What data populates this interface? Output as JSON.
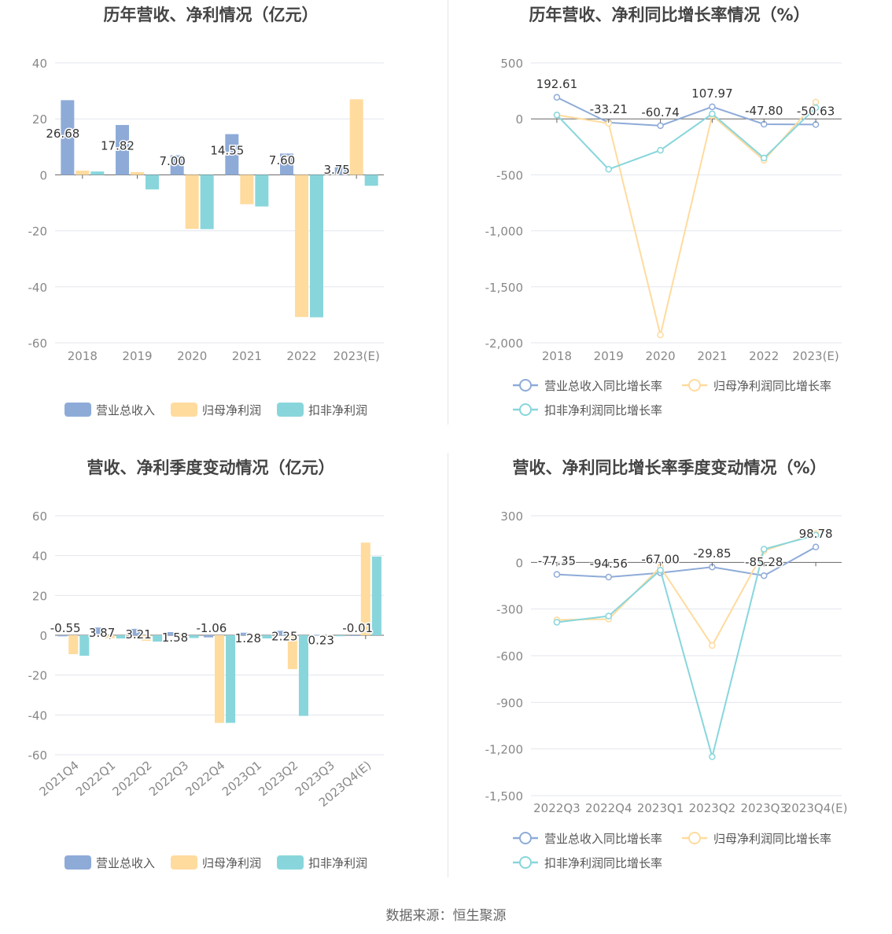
{
  "source_label": "数据来源：恒生聚源",
  "colors": {
    "revenue": "#8eabd8",
    "net_profit": "#ffdb9e",
    "deducted_profit": "#88d6dc"
  },
  "chart_data": [
    {
      "type": "bar",
      "title": "历年营收、净利情况（亿元）",
      "categories": [
        "2018",
        "2019",
        "2020",
        "2021",
        "2022",
        "2023(E)"
      ],
      "series": [
        {
          "name": "营业总收入",
          "values": [
            26.68,
            17.82,
            7.0,
            14.55,
            7.6,
            3.75
          ],
          "labels": [
            "26.68",
            "17.82",
            "7.00",
            "14.55",
            "7.60",
            "3.75"
          ]
        },
        {
          "name": "归母净利润",
          "values": [
            1.5,
            1.0,
            -19.3,
            -10.5,
            -50.8,
            27.0
          ]
        },
        {
          "name": "扣非净利润",
          "values": [
            1.2,
            -5.2,
            -19.4,
            -11.3,
            -50.9,
            -3.9
          ]
        }
      ],
      "ylim": [
        -60,
        40
      ],
      "yticks": [
        "40",
        "20",
        "0",
        "-20",
        "-40",
        "-60"
      ],
      "legend": "bottom"
    },
    {
      "type": "line",
      "title": "历年营收、净利同比增长率情况（%）",
      "categories": [
        "2018",
        "2019",
        "2020",
        "2021",
        "2022",
        "2023(E)"
      ],
      "series": [
        {
          "name": "营业总收入同比增长率",
          "values": [
            192.61,
            -33.21,
            -60.74,
            107.97,
            -47.8,
            -50.63
          ],
          "labels": [
            "192.61",
            "-33.21",
            "-60.74",
            "107.97",
            "-47.80",
            "-50.63"
          ]
        },
        {
          "name": "归母净利润同比增长率",
          "values": [
            35,
            -40,
            -1930,
            30,
            -370,
            150
          ]
        },
        {
          "name": "扣非净利润同比增长率",
          "values": [
            35,
            -450,
            -280,
            45,
            -350,
            100
          ]
        }
      ],
      "ylim": [
        -2000,
        500
      ],
      "yticks": [
        "500",
        "0",
        "-500",
        "-1,000",
        "-1,500",
        "-2,000"
      ],
      "legend": "bottom"
    },
    {
      "type": "bar",
      "title": "营收、净利季度变动情况（亿元）",
      "categories": [
        "2021Q4",
        "2022Q1",
        "2022Q2",
        "2022Q3",
        "2022Q4",
        "2023Q1",
        "2023Q2",
        "2023Q3",
        "2023Q4(E)"
      ],
      "series": [
        {
          "name": "营业总收入",
          "values": [
            -0.55,
            3.87,
            3.21,
            1.58,
            -1.06,
            1.28,
            2.25,
            0.23,
            -0.01
          ],
          "labels": [
            "-0.55",
            "3.87",
            "3.21",
            "1.58",
            "-1.06",
            "1.28",
            "2.25",
            "0.23",
            "-0.01"
          ]
        },
        {
          "name": "归母净利润",
          "values": [
            -9.5,
            -1.5,
            -2.8,
            -1.0,
            -44.0,
            -0.5,
            -17.0,
            -0.3,
            46.5
          ]
        },
        {
          "name": "扣非净利润",
          "values": [
            -10.3,
            -1.6,
            -3.2,
            -1.4,
            -44.0,
            -1.6,
            -40.5,
            -0.5,
            39.5
          ]
        }
      ],
      "ylim": [
        -60,
        60
      ],
      "yticks": [
        "60",
        "40",
        "20",
        "0",
        "-20",
        "-40",
        "-60"
      ],
      "legend": "bottom"
    },
    {
      "type": "line",
      "title": "营收、净利同比增长率季度变动情况（%）",
      "categories": [
        "2022Q3",
        "2022Q4",
        "2023Q1",
        "2023Q2",
        "2023Q3",
        "2023Q4(E)"
      ],
      "series": [
        {
          "name": "营业总收入同比增长率",
          "values": [
            -77.35,
            -94.56,
            -67.0,
            -29.85,
            -85.28,
            98.78
          ],
          "labels": [
            "-77.35",
            "-94.56",
            "-67.00",
            "-29.85",
            "-85.28",
            "98.78"
          ]
        },
        {
          "name": "归母净利润同比增长率",
          "values": [
            -370,
            -365,
            -30,
            -535,
            75,
            185
          ]
        },
        {
          "name": "扣非净利润同比增长率",
          "values": [
            -385,
            -345,
            -50,
            -1250,
            85,
            175
          ]
        }
      ],
      "ylim": [
        -1500,
        300
      ],
      "yticks": [
        "300",
        "0",
        "-300",
        "-600",
        "-900",
        "-1,200",
        "-1,500"
      ],
      "legend": "bottom"
    }
  ]
}
